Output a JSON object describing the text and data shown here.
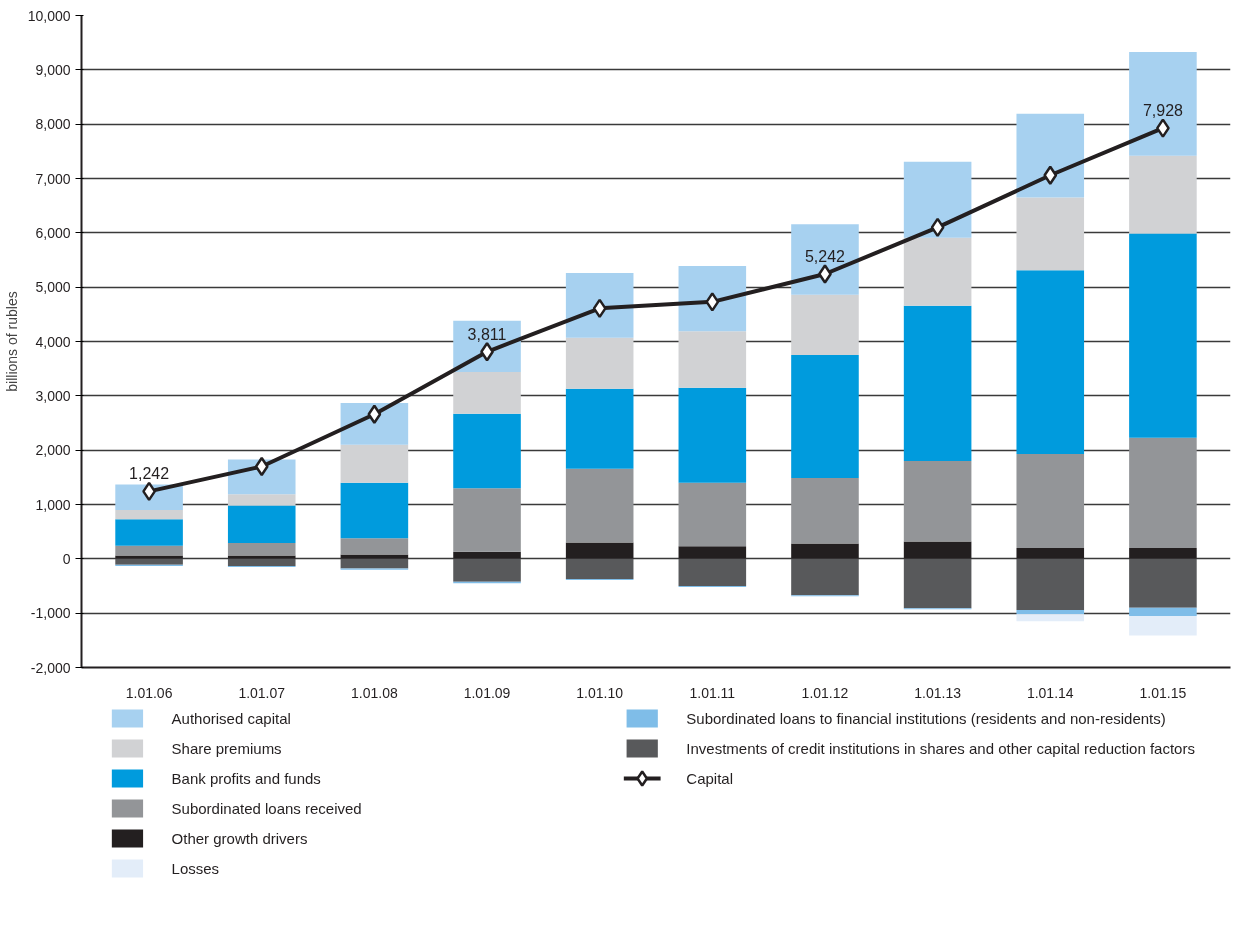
{
  "chart_data": {
    "type": "bar",
    "stacked": true,
    "ylabel": "billions of rubles",
    "categories": [
      "1.01.06",
      "1.01.07",
      "1.01.08",
      "1.01.09",
      "1.01.10",
      "1.01.11",
      "1.01.12",
      "1.01.13",
      "1.01.14",
      "1.01.15"
    ],
    "ylim": [
      -2000,
      10000
    ],
    "yticks": [
      {
        "value": -2000,
        "label": "-2,000"
      },
      {
        "value": -1000,
        "label": "-1,000"
      },
      0,
      {
        "value": 1000,
        "label": "1,000"
      },
      {
        "value": 2000,
        "label": "2,000"
      },
      {
        "value": 3000,
        "label": "3,000"
      },
      {
        "value": 4000,
        "label": "4,000"
      },
      {
        "value": 5000,
        "label": "5,000"
      },
      {
        "value": 6000,
        "label": "6,000"
      },
      {
        "value": 7000,
        "label": "7,000"
      },
      {
        "value": 8000,
        "label": "8,000"
      },
      {
        "value": 9000,
        "label": "9,000"
      },
      {
        "value": 10000,
        "label": "10,000"
      }
    ],
    "grid": "y",
    "legend": "bottom",
    "series": [
      {
        "name": "Other growth drivers",
        "color": "#231f20",
        "values": [
          60,
          60,
          80,
          130,
          300,
          230,
          280,
          320,
          200,
          200
        ]
      },
      {
        "name": "Subordinated loans received",
        "color": "#939598",
        "values": [
          180,
          230,
          300,
          1170,
          1360,
          1170,
          1210,
          1480,
          1730,
          2030
        ]
      },
      {
        "name": "Bank profits and funds",
        "color": "#009bdd",
        "values": [
          490,
          690,
          1020,
          1370,
          1470,
          1750,
          2260,
          2860,
          3380,
          3760
        ]
      },
      {
        "name": "Share premiums",
        "color": "#d1d2d4",
        "values": [
          170,
          210,
          700,
          770,
          940,
          1040,
          1110,
          1250,
          1340,
          1430
        ]
      },
      {
        "name": "Authorised capital",
        "color": "#a7d1f0",
        "values": [
          470,
          640,
          770,
          940,
          1190,
          1200,
          1300,
          1400,
          1540,
          1910
        ]
      },
      {
        "name": "Investments of credit institutions in shares and other capital reduction factors",
        "color": "#58595b",
        "values": [
          -110,
          -130,
          -180,
          -420,
          -370,
          -500,
          -670,
          -910,
          -940,
          -900
        ]
      },
      {
        "name": "Subordinated loans to financial institutions (residents and non-residents)",
        "color": "#7fbde8",
        "values": [
          -20,
          -20,
          -20,
          -30,
          -20,
          -20,
          -20,
          -20,
          -80,
          -150
        ]
      },
      {
        "name": "Losses",
        "color": "#e3edf9",
        "values": [
          0,
          0,
          0,
          0,
          0,
          0,
          0,
          0,
          -130,
          -360
        ]
      },
      {
        "name": "Capital",
        "type": "line",
        "color": "#231f20",
        "marker": "diamond",
        "values": [
          1242,
          1700,
          2660,
          3811,
          4610,
          4730,
          5242,
          6100,
          7060,
          7928
        ],
        "value_labels": [
          "1,242",
          null,
          null,
          "3,811",
          null,
          null,
          "5,242",
          null,
          null,
          "7,928"
        ]
      }
    ]
  }
}
